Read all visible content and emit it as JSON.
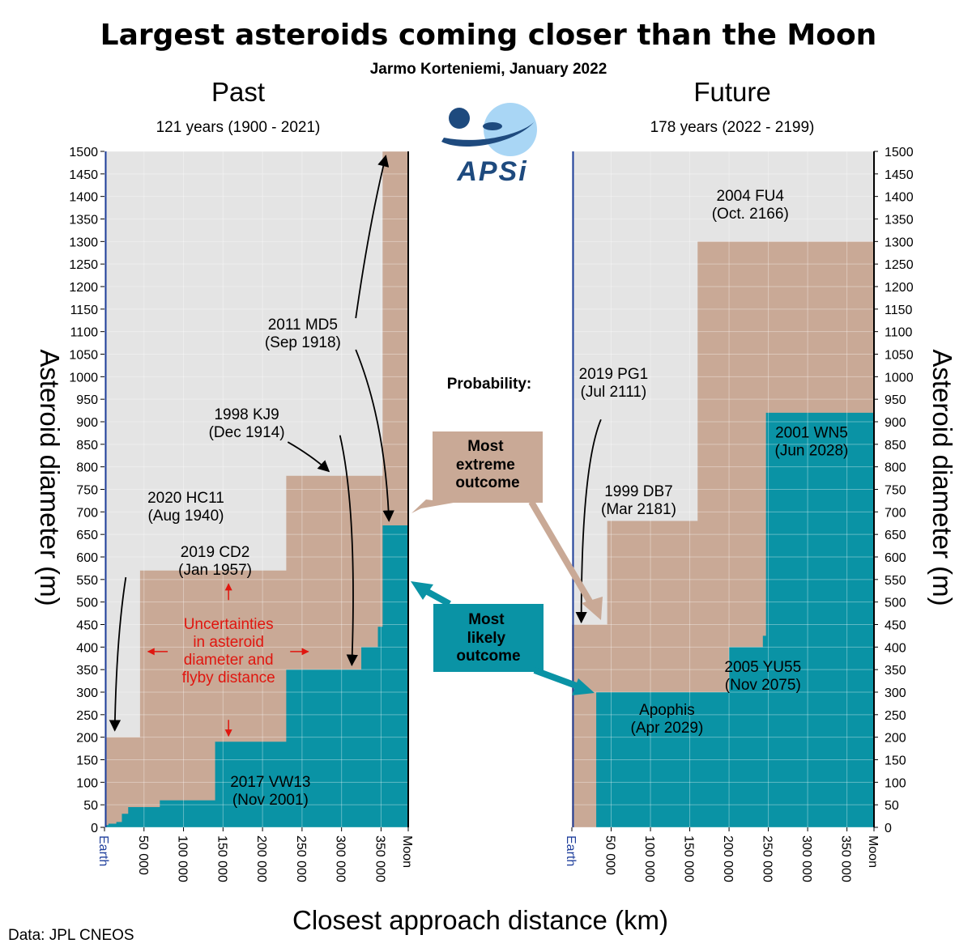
{
  "title": "Largest asteroids coming closer than the Moon",
  "subtitle": "Jarmo Korteniemi, January 2022",
  "data_source": "Data: JPL CNEOS",
  "logo_text": "APSi",
  "probability_label": "Probability:",
  "legend": {
    "extreme": "Most extreme outcome",
    "likely": "Most likely outcome"
  },
  "uncertainty_note": [
    "Uncertainties",
    "in asteroid",
    "diameter and",
    "flyby distance"
  ],
  "colors": {
    "extreme": "#c9a996",
    "likely": "#0a93a5",
    "plot_bg": "#e4e4e4",
    "earth_line": "#1f3f9c",
    "uncertainty": "#e0160f",
    "logo": "#1e4a7e"
  },
  "chart_data": [
    {
      "type": "area",
      "panel": "Past",
      "heading": "Past",
      "subheading": "121 years (1900 - 2021)",
      "xlabel": "Closest approach distance (km)",
      "ylabel": "Asteroid diameter (m)",
      "xlim": [
        0,
        384400
      ],
      "ylim": [
        0,
        1500
      ],
      "x_ticks": [
        "Earth",
        "50 000",
        "100 000",
        "150 000",
        "200 000",
        "250 000",
        "300 000",
        "350 000",
        "Moon"
      ],
      "y_ticks": [
        0,
        50,
        100,
        150,
        200,
        250,
        300,
        350,
        400,
        450,
        500,
        550,
        600,
        650,
        700,
        750,
        800,
        850,
        900,
        950,
        1000,
        1050,
        1100,
        1150,
        1200,
        1250,
        1300,
        1350,
        1400,
        1450,
        1500
      ],
      "grid": true,
      "series": [
        {
          "name": "Most extreme outcome",
          "steps": [
            [
              0,
              0
            ],
            [
              1000,
              200
            ],
            [
              45000,
              570
            ],
            [
              230000,
              780
            ],
            [
              352000,
              1500
            ],
            [
              384400,
              1500
            ]
          ]
        },
        {
          "name": "Most likely outcome",
          "steps": [
            [
              0,
              0
            ],
            [
              1000,
              5
            ],
            [
              5000,
              8
            ],
            [
              15000,
              12
            ],
            [
              22000,
              30
            ],
            [
              30000,
              45
            ],
            [
              70000,
              60
            ],
            [
              140000,
              190
            ],
            [
              230000,
              350
            ],
            [
              325000,
              400
            ],
            [
              346000,
              445
            ],
            [
              352000,
              670
            ],
            [
              384400,
              670
            ]
          ]
        }
      ],
      "annotations": [
        {
          "label": "2020 HC11",
          "date": "(Aug 1940)",
          "x": 18000,
          "y": 200
        },
        {
          "label": "2019 CD2",
          "date": "(Jan 1957)",
          "x": 45000,
          "y": 570
        },
        {
          "label": "1998 KJ9",
          "date": "(Dec 1914)",
          "x": 290000,
          "y": 780
        },
        {
          "label": "2011 MD5",
          "date": "(Sep 1918)",
          "x": 358000,
          "y": 1500
        },
        {
          "label": "2017 VW13",
          "date": "(Nov 2001)",
          "x": 210000,
          "y": 190
        }
      ]
    },
    {
      "type": "area",
      "panel": "Future",
      "heading": "Future",
      "subheading": "178 years (2022 - 2199)",
      "xlabel": "Closest approach distance (km)",
      "ylabel": "Asteroid diameter (m)",
      "xlim": [
        0,
        384400
      ],
      "ylim": [
        0,
        1500
      ],
      "x_ticks": [
        "Earth",
        "50 000",
        "100 000",
        "150 000",
        "200 000",
        "250 000",
        "300 000",
        "350 000",
        "Moon"
      ],
      "y_ticks": [
        0,
        50,
        100,
        150,
        200,
        250,
        300,
        350,
        400,
        450,
        500,
        550,
        600,
        650,
        700,
        750,
        800,
        850,
        900,
        950,
        1000,
        1050,
        1100,
        1150,
        1200,
        1250,
        1300,
        1350,
        1400,
        1450,
        1500
      ],
      "grid": true,
      "series": [
        {
          "name": "Most extreme outcome",
          "steps": [
            [
              0,
              450
            ],
            [
              45000,
              680
            ],
            [
              160000,
              1300
            ],
            [
              384400,
              1300
            ]
          ]
        },
        {
          "name": "Most likely outcome",
          "steps": [
            [
              0,
              0
            ],
            [
              31000,
              300
            ],
            [
              200000,
              400
            ],
            [
              243000,
              425
            ],
            [
              247000,
              920
            ],
            [
              384400,
              920
            ]
          ]
        }
      ],
      "annotations": [
        {
          "label": "2004 FU4",
          "date": "(Oct. 2166)",
          "x": 250000,
          "y": 1300
        },
        {
          "label": "2019 PG1",
          "date": "(Jul 2111)",
          "x": 7000,
          "y": 450
        },
        {
          "label": "1999 DB7",
          "date": "(Mar 2181)",
          "x": 45000,
          "y": 680
        },
        {
          "label": "2001 WN5",
          "date": "(Jun 2028)",
          "x": 300000,
          "y": 920
        },
        {
          "label": "2005 YU55",
          "date": "(Nov 2075)",
          "x": 210000,
          "y": 400
        },
        {
          "label": "Apophis",
          "date": "(Apr 2029)",
          "x": 31000,
          "y": 300
        }
      ]
    }
  ]
}
